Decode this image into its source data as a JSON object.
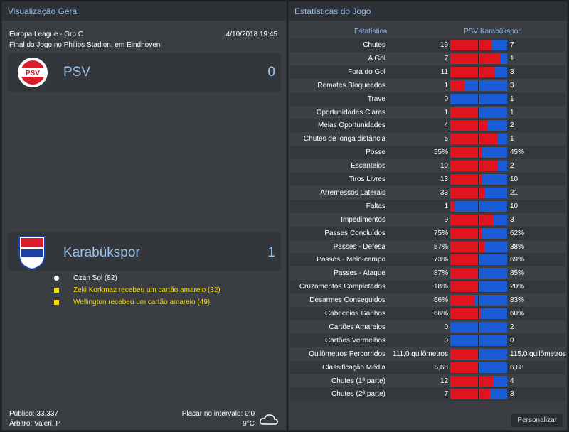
{
  "overview": {
    "title": "Visualização Geral",
    "competition": "Europa League - Grp C",
    "datetime": "4/10/2018 19:45",
    "result": "Final do Jogo no Philips Stadion, em Eindhoven",
    "home": {
      "name": "PSV",
      "score": "0"
    },
    "away": {
      "name": "Karabükspor",
      "score": "1"
    },
    "events": [
      {
        "type": "goal",
        "text": "Ozan Sol (82)"
      },
      {
        "type": "yellow",
        "text": "Zeki Korkmaz recebeu um cartão amarelo (32)"
      },
      {
        "type": "yellow",
        "text": "Wellington recebeu um cartão amarelo (49)"
      }
    ],
    "attendance": "Público: 33.337",
    "referee": "Árbitro: Valeri, P",
    "halftime": "Placar no intervalo: 0:0",
    "temperature": "9°C"
  },
  "stats": {
    "title": "Estatísticas do Jogo",
    "header": [
      "Estatística",
      "PSV",
      "Karabükspor"
    ],
    "rows": [
      [
        "Chutes",
        "19",
        "7"
      ],
      [
        "A Gol",
        "7",
        "1"
      ],
      [
        "Fora do Gol",
        "11",
        "3"
      ],
      [
        "Remates Bloqueados",
        "1",
        "3"
      ],
      [
        "Trave",
        "0",
        "1"
      ],
      [
        "Oportunidades Claras",
        "1",
        "1"
      ],
      [
        "Meias Oportunidades",
        "4",
        "2"
      ],
      [
        "Chutes de longa distância",
        "5",
        "1"
      ],
      [
        "Posse",
        "55%",
        "45%"
      ],
      [
        "Escanteios",
        "10",
        "2"
      ],
      [
        "Tiros Livres",
        "13",
        "10"
      ],
      [
        "Arremessos Laterais",
        "33",
        "21"
      ],
      [
        "Faltas",
        "1",
        "10"
      ],
      [
        "Impedimentos",
        "9",
        "3"
      ],
      [
        "Passes Concluídos",
        "75%",
        "62%"
      ],
      [
        "Passes - Defesa",
        "57%",
        "38%"
      ],
      [
        "Passes - Meio-campo",
        "73%",
        "69%"
      ],
      [
        "Passes - Ataque",
        "87%",
        "85%"
      ],
      [
        "Cruzamentos Completados",
        "18%",
        "20%"
      ],
      [
        "Desarmes Conseguidos",
        "66%",
        "83%"
      ],
      [
        "Cabeceios Ganhos",
        "66%",
        "60%"
      ],
      [
        "Cartões Amarelos",
        "0",
        "2"
      ],
      [
        "Cartões Vermelhos",
        "0",
        "0"
      ],
      [
        "Quilômetros Percorridos",
        "111,0 quilômetros",
        "115,0 quilômetros"
      ],
      [
        "Classificação Média",
        "6,68",
        "6,88"
      ],
      [
        "Chutes (1ª parte)",
        "12",
        "4"
      ],
      [
        "Chutes (2ª parte)",
        "7",
        "3"
      ]
    ],
    "button": "Personalizar"
  }
}
